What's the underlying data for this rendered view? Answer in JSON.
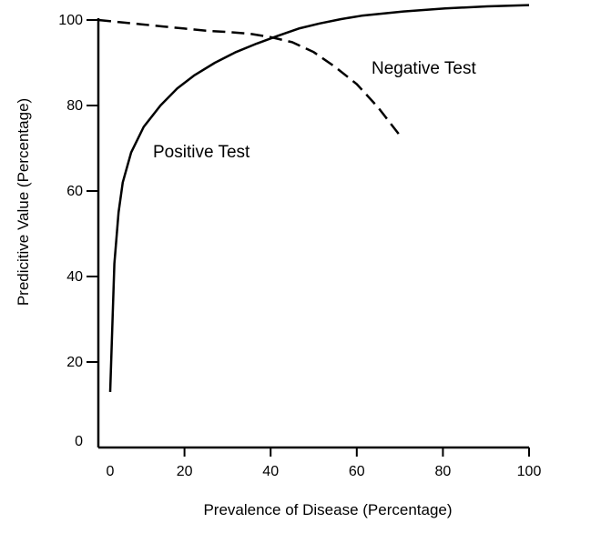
{
  "chart_data": {
    "type": "line",
    "title": "",
    "xlabel": "Prevalence of Disease (Percentage)",
    "ylabel": "Predicitive Value (Percentage)",
    "xlim": [
      0,
      100
    ],
    "ylim": [
      0,
      100
    ],
    "xticks": [
      "0",
      "20",
      "40",
      "60",
      "80",
      "100"
    ],
    "yticks": [
      "0",
      "20",
      "40",
      "60",
      "80",
      "100"
    ],
    "grid": false,
    "series": [
      {
        "name": "Positive Test",
        "style": "solid",
        "color": "#000000",
        "x": [
          0,
          0.5,
          1,
          2,
          3,
          5,
          8,
          12,
          16,
          20,
          25,
          30,
          35,
          40,
          45,
          50,
          55,
          60,
          70,
          80,
          90,
          100
        ],
        "y": [
          13,
          28,
          43,
          55,
          62,
          69,
          75,
          80,
          84,
          87,
          90,
          92.5,
          94.5,
          96.3,
          98,
          99.2,
          100.2,
          101,
          102,
          102.7,
          103.2,
          103.5
        ]
      },
      {
        "name": "Negative Test",
        "style": "dashed",
        "color": "#000000",
        "x": [
          0,
          5,
          10,
          15,
          20,
          25,
          30,
          35,
          40,
          45,
          50,
          55,
          60,
          65,
          70
        ],
        "y": [
          100,
          99.5,
          99,
          98.5,
          98,
          97.5,
          97.2,
          96.8,
          96,
          94.8,
          92.5,
          89,
          85,
          79.5,
          73
        ]
      }
    ]
  }
}
